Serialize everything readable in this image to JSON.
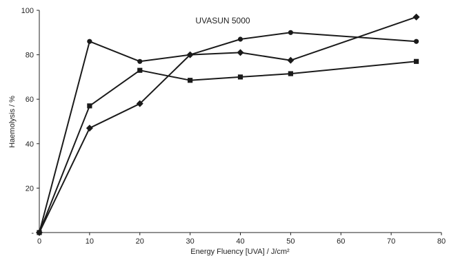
{
  "chart_data": {
    "type": "line",
    "title": "UVASUN 5000",
    "xlabel": "Energy Fluency [UVA] / J/cm²",
    "ylabel": "Haemolysis / %",
    "xlim": [
      0,
      80
    ],
    "ylim": [
      0,
      100
    ],
    "xticks": [
      0,
      10,
      20,
      30,
      40,
      50,
      60,
      70,
      80
    ],
    "yticks": [
      0,
      20,
      40,
      60,
      80,
      100
    ],
    "ytick_labels": [
      "-",
      "20",
      "40",
      "60",
      "80",
      "100"
    ],
    "grid": false,
    "legend": "none",
    "color": "#1a1a1a",
    "series": [
      {
        "marker": "circle",
        "x": [
          0,
          10,
          20,
          30,
          40,
          50,
          75
        ],
        "y": [
          0,
          86,
          77,
          80,
          87,
          90,
          86
        ]
      },
      {
        "marker": "square",
        "x": [
          0,
          10,
          20,
          30,
          40,
          50,
          75
        ],
        "y": [
          0,
          57,
          73,
          68.5,
          70,
          71.5,
          77
        ]
      },
      {
        "marker": "diamond",
        "x": [
          0,
          10,
          20,
          30,
          40,
          50,
          75
        ],
        "y": [
          0,
          47,
          58,
          80,
          81,
          77.5,
          97
        ]
      }
    ]
  }
}
